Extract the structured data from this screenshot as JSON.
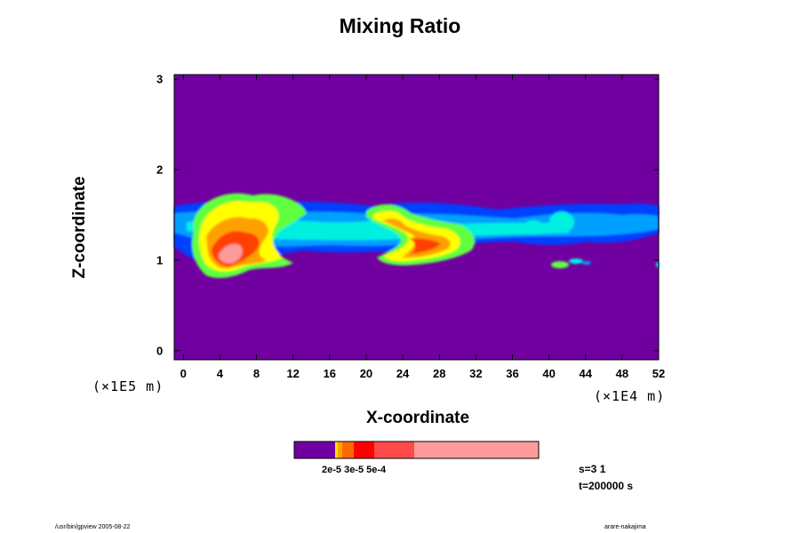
{
  "chart_data": {
    "type": "heatmap",
    "title": "Mixing Ratio",
    "xlabel": "X-coordinate",
    "ylabel": "Z-coordinate",
    "x_ticks": [
      "0",
      "4",
      "8",
      "12",
      "16",
      "20",
      "24",
      "28",
      "32",
      "36",
      "40",
      "44",
      "48",
      "52"
    ],
    "y_ticks": [
      "0",
      "1",
      "2",
      "3"
    ],
    "x_scale": "(×1E4 m)",
    "y_scale": "(×1E5 m)",
    "xlim": [
      -1,
      52
    ],
    "ylim": [
      -0.1,
      3.05
    ],
    "colorbar": {
      "colors": [
        "#7000a0",
        "#ffe000",
        "#ffa000",
        "#ff6a00",
        "#ff0000",
        "#ff4a4a",
        "#ff9a9a"
      ],
      "labels_overlapping": "2e-5 3e-5 5e-4"
    },
    "field_colors": [
      "#7000a0",
      "#0040ff",
      "#00a0ff",
      "#00f0e0",
      "#60ff40",
      "#ffff00",
      "#ffa000",
      "#ff4000",
      "#ff5a5a",
      "#ff9a9a"
    ],
    "cloud_band_z": [
      1.1,
      1.6
    ]
  },
  "info": {
    "s_label": "s=3 1",
    "t_label": "t=200000 s"
  },
  "footer": {
    "left": "/usr/bin/gpview 2005-08-22",
    "right": "arare-nakajima"
  }
}
